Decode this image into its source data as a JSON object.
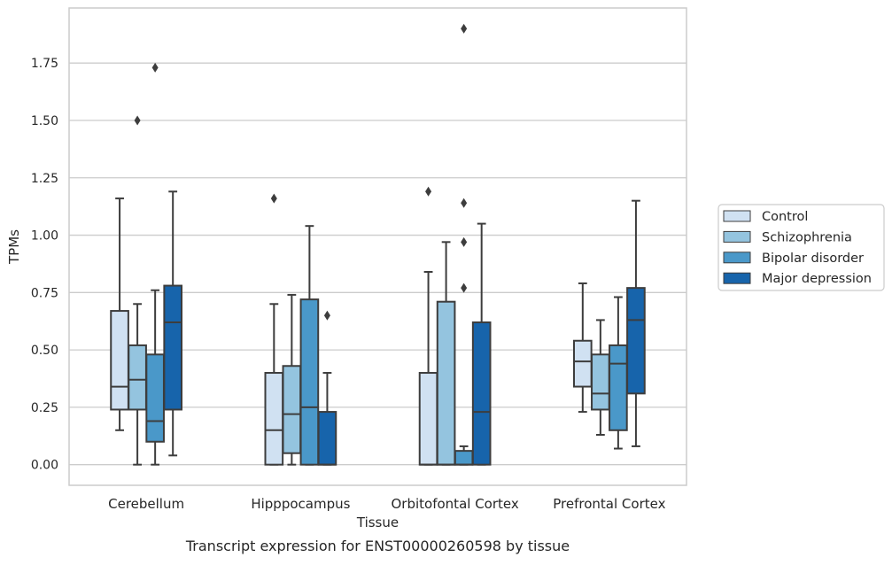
{
  "chart_data": {
    "type": "box",
    "xlabel": "Tissue",
    "ylabel": "TPMs",
    "caption": "Transcript expression for ENST00000260598 by tissue",
    "ylim": [
      -0.09,
      1.99
    ],
    "yticks": [
      0.0,
      0.25,
      0.5,
      0.75,
      1.0,
      1.25,
      1.5,
      1.75
    ],
    "ytick_labels": [
      "0.00",
      "0.25",
      "0.50",
      "0.75",
      "1.00",
      "1.25",
      "1.50",
      "1.75"
    ],
    "categories": [
      "Cerebellum",
      "Hipppocampus",
      "Orbitofontal Cortex",
      "Prefrontal Cortex"
    ],
    "grid": "horizontal",
    "legend_position": "right",
    "colors": {
      "Control": "#d0e1f2",
      "Schizophrenia": "#94c4df",
      "Bipolar disorder": "#4a98c9",
      "Major depression": "#1764ab",
      "edge": "#3d3d3d",
      "grid": "#cccccc"
    },
    "series": [
      {
        "name": "Control",
        "boxes": [
          {
            "whislo": 0.15,
            "q1": 0.24,
            "med": 0.34,
            "q3": 0.67,
            "whishi": 1.16,
            "fliers": []
          },
          {
            "whislo": 0.0,
            "q1": 0.0,
            "med": 0.15,
            "q3": 0.4,
            "whishi": 0.7,
            "fliers": [
              1.16
            ]
          },
          {
            "whislo": 0.0,
            "q1": 0.0,
            "med": 0.0,
            "q3": 0.4,
            "whishi": 0.84,
            "fliers": [
              1.19
            ]
          },
          {
            "whislo": 0.23,
            "q1": 0.34,
            "med": 0.45,
            "q3": 0.54,
            "whishi": 0.79,
            "fliers": []
          }
        ]
      },
      {
        "name": "Schizophrenia",
        "boxes": [
          {
            "whislo": 0.0,
            "q1": 0.24,
            "med": 0.37,
            "q3": 0.52,
            "whishi": 0.7,
            "fliers": [
              1.5
            ]
          },
          {
            "whislo": 0.0,
            "q1": 0.05,
            "med": 0.22,
            "q3": 0.43,
            "whishi": 0.74,
            "fliers": []
          },
          {
            "whislo": 0.0,
            "q1": 0.0,
            "med": 0.0,
            "q3": 0.71,
            "whishi": 0.97,
            "fliers": []
          },
          {
            "whislo": 0.13,
            "q1": 0.24,
            "med": 0.31,
            "q3": 0.48,
            "whishi": 0.63,
            "fliers": []
          }
        ]
      },
      {
        "name": "Bipolar disorder",
        "boxes": [
          {
            "whislo": 0.0,
            "q1": 0.1,
            "med": 0.19,
            "q3": 0.48,
            "whishi": 0.76,
            "fliers": [
              1.73
            ]
          },
          {
            "whislo": 0.0,
            "q1": 0.0,
            "med": 0.25,
            "q3": 0.72,
            "whishi": 1.04,
            "fliers": []
          },
          {
            "whislo": 0.0,
            "q1": 0.0,
            "med": 0.0,
            "q3": 0.06,
            "whishi": 0.08,
            "fliers": [
              0.77,
              0.97,
              1.14,
              1.9
            ]
          },
          {
            "whislo": 0.07,
            "q1": 0.15,
            "med": 0.44,
            "q3": 0.52,
            "whishi": 0.73,
            "fliers": []
          }
        ]
      },
      {
        "name": "Major depression",
        "boxes": [
          {
            "whislo": 0.04,
            "q1": 0.24,
            "med": 0.62,
            "q3": 0.78,
            "whishi": 1.19,
            "fliers": []
          },
          {
            "whislo": 0.0,
            "q1": 0.0,
            "med": 0.0,
            "q3": 0.23,
            "whishi": 0.4,
            "fliers": [
              0.65
            ]
          },
          {
            "whislo": 0.0,
            "q1": 0.0,
            "med": 0.23,
            "q3": 0.62,
            "whishi": 1.05,
            "fliers": []
          },
          {
            "whislo": 0.08,
            "q1": 0.31,
            "med": 0.63,
            "q3": 0.77,
            "whishi": 1.15,
            "fliers": []
          }
        ]
      }
    ]
  }
}
